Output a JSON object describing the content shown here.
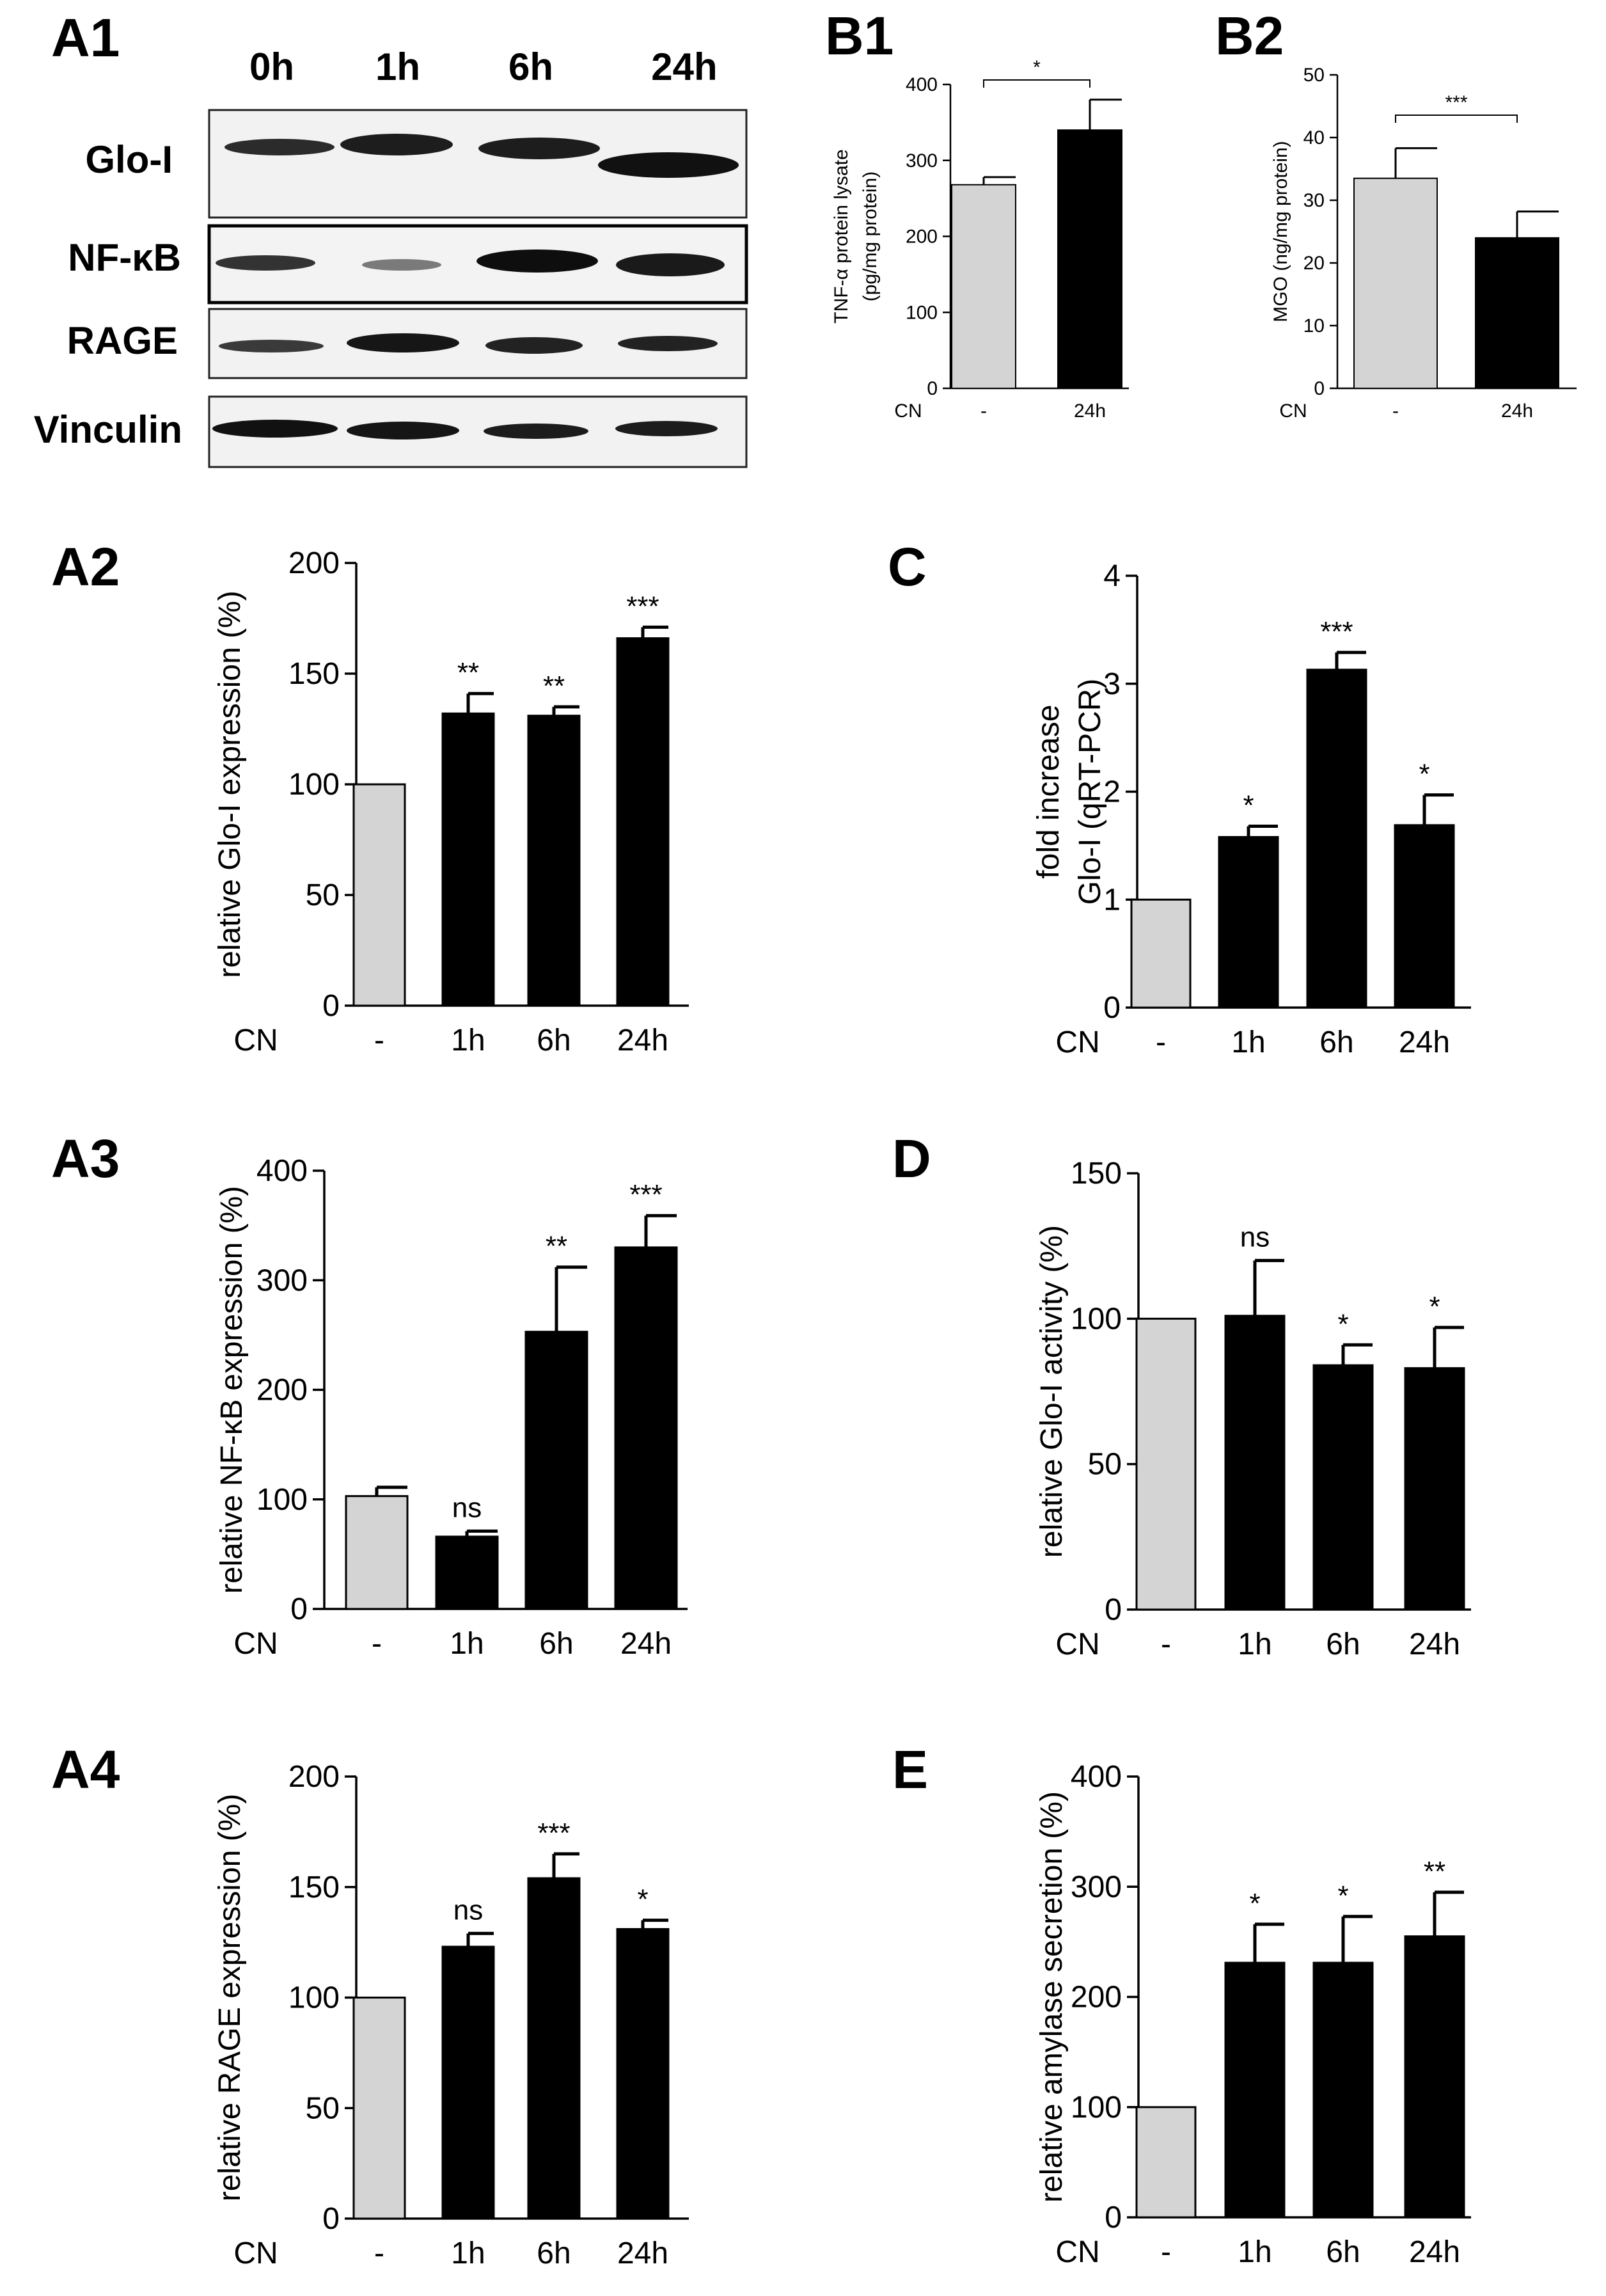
{
  "western_blot": {
    "label": "A1",
    "timepoints": [
      "0h",
      "1h",
      "6h",
      "24h"
    ],
    "proteins": [
      "Glo-I",
      "NF-κB",
      "RAGE",
      "Vinculin"
    ]
  },
  "chart_data": [
    {
      "id": "B1",
      "label": "B1",
      "type": "bar",
      "categories": [
        "-",
        "24h"
      ],
      "xprefix": "CN",
      "values": [
        268,
        340
      ],
      "errors": [
        10,
        40
      ],
      "colors": [
        "#d4d4d4",
        "#000000"
      ],
      "ylabel_lines": [
        "TNF-α protein lysate",
        "(pg/mg protein)"
      ],
      "ylim": [
        0,
        400
      ],
      "yticks": [
        0,
        100,
        200,
        300,
        400
      ],
      "significance": [
        {
          "bar": 1,
          "text": "*",
          "bracket": true
        }
      ]
    },
    {
      "id": "B2",
      "label": "B2",
      "type": "bar",
      "categories": [
        "-",
        "24h"
      ],
      "xprefix": "CN",
      "values": [
        33.5,
        24
      ],
      "errors": [
        4.8,
        4.2
      ],
      "colors": [
        "#d4d4d4",
        "#000000"
      ],
      "ylabel_lines": [
        "MGO (ng/mg protein)"
      ],
      "ylim": [
        0,
        50
      ],
      "yticks": [
        0,
        10,
        20,
        30,
        40,
        50
      ],
      "significance": [
        {
          "bar": 1,
          "text": "***",
          "bracket": true
        }
      ]
    },
    {
      "id": "A2",
      "label": "A2",
      "type": "bar",
      "categories": [
        "-",
        "1h",
        "6h",
        "24h"
      ],
      "xprefix": "CN",
      "values": [
        100,
        132,
        131,
        166
      ],
      "errors": [
        0,
        9,
        4,
        5
      ],
      "colors": [
        "#d4d4d4",
        "#000000",
        "#000000",
        "#000000"
      ],
      "ylabel_lines": [
        "relative Glo-I expression (%)"
      ],
      "ylim": [
        0,
        200
      ],
      "yticks": [
        0,
        50,
        100,
        150,
        200
      ],
      "significance": [
        {
          "bar": 1,
          "text": "**"
        },
        {
          "bar": 2,
          "text": "**"
        },
        {
          "bar": 3,
          "text": "***"
        }
      ]
    },
    {
      "id": "C",
      "label": "C",
      "type": "bar",
      "categories": [
        "-",
        "1h",
        "6h",
        "24h"
      ],
      "xprefix": "CN",
      "values": [
        1,
        1.58,
        3.13,
        1.69
      ],
      "errors": [
        0,
        0.1,
        0.16,
        0.28
      ],
      "colors": [
        "#d4d4d4",
        "#000000",
        "#000000",
        "#000000"
      ],
      "ylabel_lines": [
        "fold increase",
        "Glo-I (qRT-PCR)"
      ],
      "ylim": [
        0,
        4
      ],
      "yticks": [
        0,
        1,
        2,
        3,
        4
      ],
      "significance": [
        {
          "bar": 1,
          "text": "*"
        },
        {
          "bar": 2,
          "text": "***"
        },
        {
          "bar": 3,
          "text": "*"
        }
      ]
    },
    {
      "id": "A3",
      "label": "A3",
      "type": "bar",
      "categories": [
        "-",
        "1h",
        "6h",
        "24h"
      ],
      "xprefix": "CN",
      "values": [
        103,
        66,
        253,
        330
      ],
      "errors": [
        8,
        5,
        59,
        29
      ],
      "colors": [
        "#d4d4d4",
        "#000000",
        "#000000",
        "#000000"
      ],
      "ylabel_lines": [
        "relative NF-κB expression (%)"
      ],
      "ylim": [
        0,
        400
      ],
      "yticks": [
        0,
        100,
        200,
        300,
        400
      ],
      "significance": [
        {
          "bar": 1,
          "text": "ns"
        },
        {
          "bar": 2,
          "text": "**"
        },
        {
          "bar": 3,
          "text": "***"
        }
      ]
    },
    {
      "id": "D",
      "label": "D",
      "type": "bar",
      "categories": [
        "-",
        "1h",
        "6h",
        "24h"
      ],
      "xprefix": "CN",
      "values": [
        100,
        101,
        84,
        83
      ],
      "errors": [
        0,
        19,
        7,
        14
      ],
      "colors": [
        "#d4d4d4",
        "#000000",
        "#000000",
        "#000000"
      ],
      "ylabel_lines": [
        "relative Glo-I activity (%)"
      ],
      "ylim": [
        0,
        150
      ],
      "yticks": [
        0,
        50,
        100,
        150
      ],
      "significance": [
        {
          "bar": 1,
          "text": "ns"
        },
        {
          "bar": 2,
          "text": "*"
        },
        {
          "bar": 3,
          "text": "*"
        }
      ]
    },
    {
      "id": "A4",
      "label": "A4",
      "type": "bar",
      "categories": [
        "-",
        "1h",
        "6h",
        "24h"
      ],
      "xprefix": "CN",
      "values": [
        100,
        123,
        154,
        131
      ],
      "errors": [
        0,
        6,
        11,
        4
      ],
      "colors": [
        "#d4d4d4",
        "#000000",
        "#000000",
        "#000000"
      ],
      "ylabel_lines": [
        "relative RAGE expression (%)"
      ],
      "ylim": [
        0,
        200
      ],
      "yticks": [
        0,
        50,
        100,
        150,
        200
      ],
      "significance": [
        {
          "bar": 1,
          "text": "ns"
        },
        {
          "bar": 2,
          "text": "***"
        },
        {
          "bar": 3,
          "text": "*"
        }
      ]
    },
    {
      "id": "E",
      "label": "E",
      "type": "bar",
      "categories": [
        "-",
        "1h",
        "6h",
        "24h"
      ],
      "xprefix": "CN",
      "values": [
        100,
        231,
        231,
        255
      ],
      "errors": [
        0,
        35,
        42,
        40
      ],
      "colors": [
        "#d4d4d4",
        "#000000",
        "#000000",
        "#000000"
      ],
      "ylabel_lines": [
        "relative amylase secretion (%)"
      ],
      "ylim": [
        0,
        400
      ],
      "yticks": [
        0,
        100,
        200,
        300,
        400
      ],
      "significance": [
        {
          "bar": 1,
          "text": "*"
        },
        {
          "bar": 2,
          "text": "*"
        },
        {
          "bar": 3,
          "text": "**"
        }
      ]
    }
  ]
}
